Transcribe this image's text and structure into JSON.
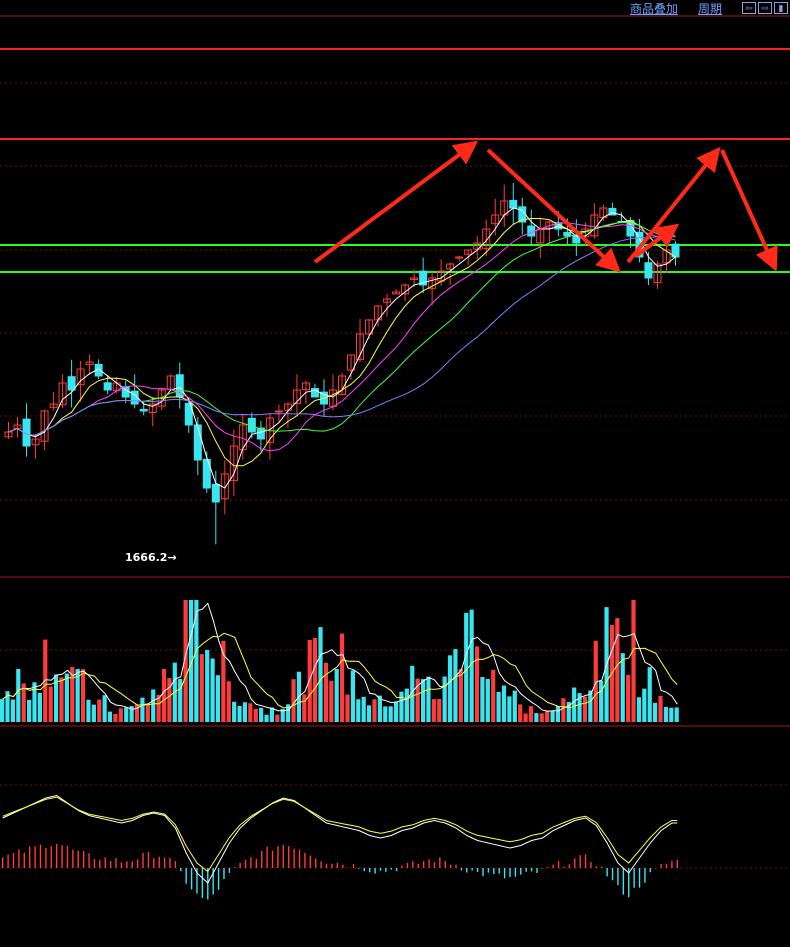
{
  "toolbar": {
    "overlay_label": "商品叠加",
    "period_label": "周期",
    "nav_left_icon": "arrow-left-icon",
    "nav_right_icon": "arrow-right-icon",
    "nav_end_icon": "bar-end-icon"
  },
  "colors": {
    "up": "#ff3b3b",
    "down": "#37e6f0",
    "ma5": "#ffffff",
    "ma10": "#ffff40",
    "ma20": "#ff40ff",
    "ma30": "#40ff40",
    "ma60": "#8080ff",
    "resistance": "#ff2020",
    "support": "#20ff20",
    "arrow": "#ff2a1a",
    "grid": "#6a1010"
  },
  "chart_data": {
    "type": "candlestick",
    "title": "",
    "min_label": "1666.2",
    "series": [
      {
        "name": "price"
      },
      {
        "name": "volume"
      },
      {
        "name": "macd"
      }
    ],
    "annotations": {
      "resistance_levels": 2,
      "support_levels": 2,
      "trend_arrows": 5
    },
    "price_path": [
      0.28,
      0.3,
      0.24,
      0.26,
      0.34,
      0.36,
      0.42,
      0.4,
      0.46,
      0.48,
      0.44,
      0.4,
      0.42,
      0.38,
      0.36,
      0.34,
      0.36,
      0.4,
      0.44,
      0.38,
      0.3,
      0.2,
      0.12,
      0.08,
      0.16,
      0.24,
      0.3,
      0.28,
      0.26,
      0.32,
      0.34,
      0.36,
      0.4,
      0.42,
      0.38,
      0.36,
      0.4,
      0.44,
      0.5,
      0.56,
      0.6,
      0.64,
      0.66,
      0.68,
      0.7,
      0.72,
      0.7,
      0.72,
      0.74,
      0.76,
      0.78,
      0.8,
      0.82,
      0.86,
      0.9,
      0.94,
      0.92,
      0.88,
      0.84,
      0.86,
      0.88,
      0.86,
      0.84,
      0.82,
      0.86,
      0.9,
      0.92,
      0.9,
      0.88,
      0.84,
      0.78,
      0.72,
      0.76,
      0.8,
      0.78
    ],
    "volume_path": [
      0.25,
      0.35,
      0.3,
      0.45,
      0.55,
      0.5,
      0.4,
      0.3,
      0.2,
      0.15,
      0.1,
      0.1,
      0.12,
      0.18,
      0.25,
      0.35,
      0.55,
      0.85,
      0.95,
      0.7,
      0.45,
      0.3,
      0.2,
      0.15,
      0.1,
      0.12,
      0.18,
      0.3,
      0.45,
      0.55,
      0.6,
      0.5,
      0.35,
      0.25,
      0.18,
      0.15,
      0.2,
      0.3,
      0.35,
      0.3,
      0.25,
      0.4,
      0.6,
      0.75,
      0.65,
      0.45,
      0.3,
      0.2,
      0.12,
      0.1,
      0.08,
      0.1,
      0.15,
      0.25,
      0.35,
      0.45,
      0.65,
      0.95,
      0.75,
      0.4,
      0.3,
      0.2,
      0.12
    ],
    "macd_path": [
      0.3,
      0.4,
      0.5,
      0.6,
      0.7,
      0.75,
      0.6,
      0.45,
      0.35,
      0.3,
      0.25,
      0.2,
      0.25,
      0.35,
      0.4,
      0.35,
      0.1,
      -0.4,
      -0.8,
      -1.0,
      -0.6,
      -0.2,
      0.1,
      0.3,
      0.45,
      0.6,
      0.7,
      0.65,
      0.5,
      0.35,
      0.2,
      0.15,
      0.1,
      0.05,
      -0.05,
      -0.1,
      -0.05,
      0.05,
      0.1,
      0.2,
      0.25,
      0.2,
      0.1,
      -0.05,
      -0.15,
      -0.2,
      -0.25,
      -0.3,
      -0.25,
      -0.15,
      -0.1,
      0.05,
      0.15,
      0.25,
      0.3,
      0.15,
      -0.2,
      -0.6,
      -0.8,
      -0.5,
      -0.2,
      0.05,
      0.2
    ]
  }
}
